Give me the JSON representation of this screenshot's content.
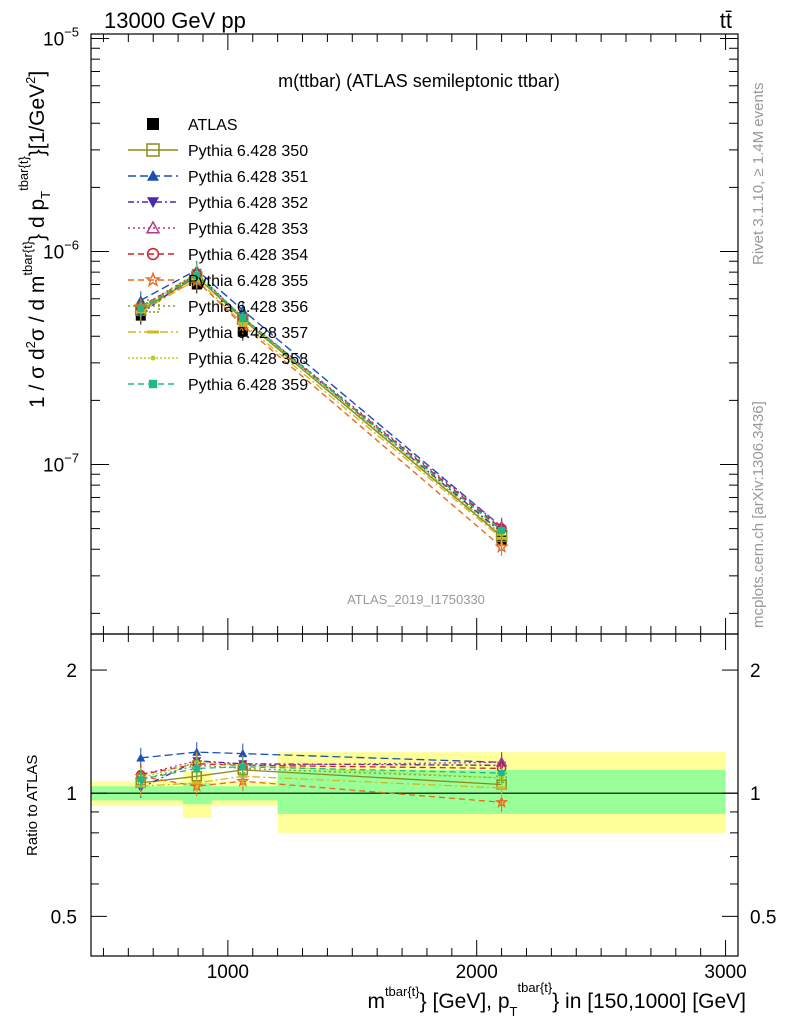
{
  "header": {
    "left": "13000 GeV pp",
    "right": "tt̄",
    "right_side": "Rivet 3.1.10, ≥ 1.4M events",
    "right_side2": "mcplots.cern.ch [arXiv:1306.3436]",
    "watermark": "ATLAS_2019_I1750330"
  },
  "chart_data": [
    {
      "type": "line",
      "title": "m(ttbar) (ATLAS semileptonic ttbar)",
      "ylabel": "1 / σ d²σ / d m^{tbar{t}} d p_T^{tbar{t}} [1/GeV²]",
      "ylabel_parts": {
        "main": "1 / σ d",
        "sup1": "2",
        "mid": "σ / d m",
        "sup2": "tbar{t}",
        "mid2": "} d p",
        "sub3": "T",
        "sup3": "tbar{t}",
        "unit": "}[1/GeV",
        "unit_sup": "2",
        "unit_end": "]"
      },
      "xlim": [
        450,
        3050
      ],
      "ylim": [
        1.6e-08,
        1.05e-05
      ],
      "yscale": "log",
      "ytick_labels": [
        {
          "value": 1e-05,
          "base": "10",
          "exp": "−5"
        },
        {
          "value": 1e-06,
          "base": "10",
          "exp": "−6"
        },
        {
          "value": 1e-07,
          "base": "10",
          "exp": "−7"
        }
      ],
      "x": [
        650,
        875,
        1060,
        2100
      ],
      "series": [
        {
          "name": "ATLAS",
          "color": "#000000",
          "marker": "square-filled",
          "dash": "none",
          "values": [
            5e-07,
            7e-07,
            4.2e-07,
            4.4e-08
          ]
        },
        {
          "name": "Pythia 6.428 350",
          "color": "#8c8a1c",
          "marker": "square-open",
          "dash": "solid",
          "values": [
            5.3e-07,
            7.6e-07,
            4.8e-07,
            4.6e-08
          ]
        },
        {
          "name": "Pythia 6.428 351",
          "color": "#1a50b3",
          "marker": "triangle-up-filled",
          "dash": "8,4",
          "values": [
            5.9e-07,
            8.2e-07,
            5.3e-07,
            5.1e-08
          ]
        },
        {
          "name": "Pythia 6.428 352",
          "color": "#4a2aa8",
          "marker": "triangle-down-filled",
          "dash": "6,3,2,3",
          "values": [
            5.1e-07,
            7.9e-07,
            4.9e-07,
            4.8e-08
          ]
        },
        {
          "name": "Pythia 6.428 353",
          "color": "#b03a8a",
          "marker": "triangle-up-open",
          "dash": "2,3",
          "values": [
            5.5e-07,
            7.9e-07,
            4.9e-07,
            5.1e-08
          ]
        },
        {
          "name": "Pythia 6.428 354",
          "color": "#d0202a",
          "marker": "circle-open",
          "dash": "6,4",
          "values": [
            5.5e-07,
            7.8e-07,
            4.9e-07,
            5e-08
          ]
        },
        {
          "name": "Pythia 6.428 355",
          "color": "#e86a1e",
          "marker": "star-open",
          "dash": "6,4",
          "values": [
            5.5e-07,
            7.3e-07,
            4.5e-07,
            4.1e-08
          ]
        },
        {
          "name": "Pythia 6.428 356",
          "color": "#7aa020",
          "marker": "square-dotted",
          "dash": "2,3",
          "values": [
            5.4e-07,
            7.8e-07,
            4.8e-07,
            4.7e-08
          ]
        },
        {
          "name": "Pythia 6.428 357",
          "color": "#d4b820",
          "marker": "dash-mark",
          "dash": "8,3,2,3",
          "values": [
            5.2e-07,
            7.4e-07,
            4.6e-07,
            4.5e-08
          ]
        },
        {
          "name": "Pythia 6.428 358",
          "color": "#b8d020",
          "marker": "dot",
          "dash": "2,2",
          "values": [
            5.4e-07,
            7.9e-07,
            4.9e-07,
            4.7e-08
          ]
        },
        {
          "name": "Pythia 6.428 359",
          "color": "#20b888",
          "marker": "square-small",
          "dash": "6,4",
          "values": [
            5.4e-07,
            7.7e-07,
            4.9e-07,
            4.9e-08
          ]
        }
      ]
    },
    {
      "type": "line",
      "ylabel": "Ratio to ATLAS",
      "xlabel_parts": {
        "m": "m",
        "sup1": "tbar{t}",
        "mid": "} [GeV], p",
        "sub2": "T",
        "sup2": "tbar{t}",
        "end": "} in [150,1000] [GeV]"
      },
      "xlim": [
        450,
        3050
      ],
      "ylim": [
        0.4,
        2.45
      ],
      "yscale": "log",
      "ytick_labels": [
        {
          "value": 0.5,
          "label": "0.5"
        },
        {
          "value": 1,
          "label": "1"
        },
        {
          "value": 2,
          "label": "2"
        }
      ],
      "xtick_labels": [
        {
          "value": 1000,
          "label": "1000"
        },
        {
          "value": 2000,
          "label": "2000"
        },
        {
          "value": 3000,
          "label": "3000"
        }
      ],
      "bands": [
        {
          "x0": 450,
          "x1": 820,
          "yellow": [
            0.93,
            1.07
          ],
          "green": [
            0.96,
            1.04
          ]
        },
        {
          "x0": 820,
          "x1": 935,
          "yellow": [
            0.87,
            1.13
          ],
          "green": [
            0.94,
            1.06
          ]
        },
        {
          "x0": 935,
          "x1": 1200,
          "yellow": [
            0.93,
            1.07
          ],
          "green": [
            0.96,
            1.04
          ]
        },
        {
          "x0": 1200,
          "x1": 3000,
          "yellow": [
            0.8,
            1.26
          ],
          "green": [
            0.89,
            1.14
          ]
        }
      ],
      "x": [
        650,
        875,
        1060,
        2100
      ],
      "series": [
        {
          "name": "Pythia 6.428 350",
          "values": [
            1.06,
            1.1,
            1.14,
            1.05
          ]
        },
        {
          "name": "Pythia 6.428 351",
          "values": [
            1.22,
            1.26,
            1.25,
            1.19
          ]
        },
        {
          "name": "Pythia 6.428 352",
          "values": [
            1.03,
            1.2,
            1.18,
            1.17
          ]
        },
        {
          "name": "Pythia 6.428 353",
          "values": [
            1.11,
            1.2,
            1.17,
            1.19
          ]
        },
        {
          "name": "Pythia 6.428 354",
          "values": [
            1.11,
            1.18,
            1.17,
            1.15
          ]
        },
        {
          "name": "Pythia 6.428 355",
          "values": [
            1.1,
            1.04,
            1.07,
            0.95
          ]
        },
        {
          "name": "Pythia 6.428 356",
          "values": [
            1.08,
            1.17,
            1.15,
            1.09
          ]
        },
        {
          "name": "Pythia 6.428 357",
          "values": [
            1.04,
            1.06,
            1.1,
            1.03
          ]
        },
        {
          "name": "Pythia 6.428 358",
          "values": [
            1.09,
            1.19,
            1.17,
            1.09
          ]
        },
        {
          "name": "Pythia 6.428 359",
          "values": [
            1.08,
            1.15,
            1.16,
            1.12
          ]
        }
      ]
    }
  ]
}
